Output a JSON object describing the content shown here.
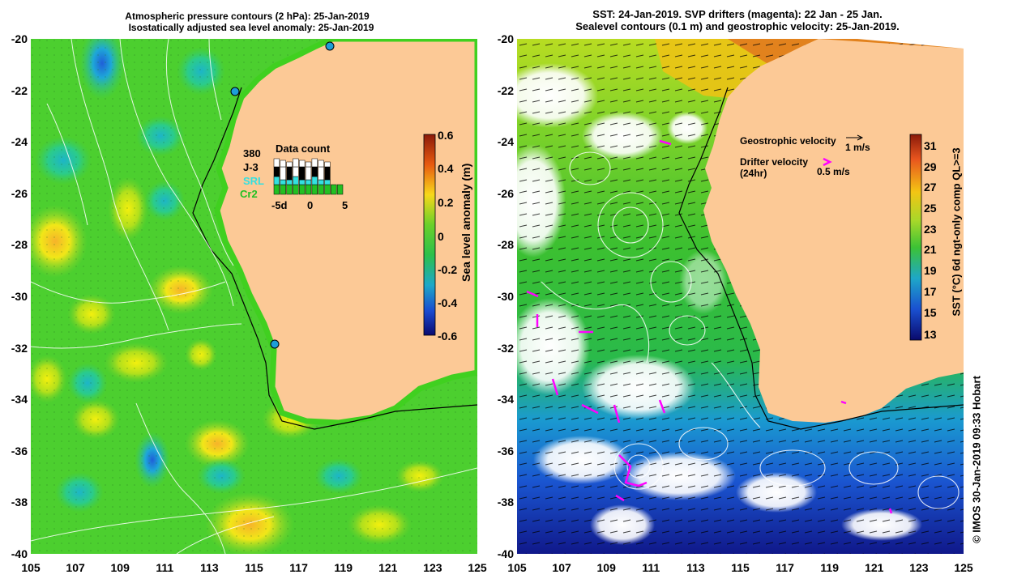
{
  "left_panel": {
    "title_line1": "Atmospheric pressure contours (2 hPa): 25-Jan-2019",
    "title_line2": "Isostatically adjusted sea level anomaly: 25-Jan-2019",
    "y_ticks": [
      "-20",
      "-22",
      "-24",
      "-26",
      "-28",
      "-30",
      "-32",
      "-34",
      "-36",
      "-38",
      "-40"
    ],
    "x_ticks": [
      "105",
      "107",
      "109",
      "111",
      "113",
      "115",
      "117",
      "119",
      "121",
      "123",
      "125"
    ],
    "colorbar_label": "Sea level anomaly (m)",
    "colorbar_ticks": [
      "0.6",
      "0.4",
      "0.2",
      "0",
      "-0.2",
      "-0.4",
      "-0.6"
    ],
    "legend": {
      "title": "Data count",
      "labels": [
        "380",
        "J-3",
        "SRL",
        "Cr2"
      ],
      "label_colors": [
        "#000000",
        "#000000",
        "#33e0e0",
        "#22c022"
      ],
      "x_ticks": [
        "-5d",
        "0",
        "5"
      ]
    }
  },
  "right_panel": {
    "title_line1": "SST: 24-Jan-2019. SVP drifters (magenta): 22 Jan - 25 Jan.",
    "title_line2": "Sealevel contours (0.1 m) and geostrophic velocity: 25-Jan-2019.",
    "y_ticks": [
      "-20",
      "-22",
      "-24",
      "-26",
      "-28",
      "-30",
      "-32",
      "-34",
      "-36",
      "-38",
      "-40"
    ],
    "x_ticks": [
      "105",
      "107",
      "109",
      "111",
      "113",
      "115",
      "117",
      "119",
      "121",
      "123",
      "125"
    ],
    "colorbar_label": "SST (°C) 6d ngt-only comp QL>=3",
    "colorbar_ticks": [
      "31",
      "29",
      "27",
      "25",
      "23",
      "21",
      "19",
      "17",
      "15",
      "13"
    ],
    "geostrophic_label": "Geostrophic velocity",
    "geostrophic_scale": "1 m/s",
    "drifter_label": "Drifter velocity",
    "drifter_sub": "(24hr)",
    "drifter_scale": "0.5 m/s"
  },
  "credit": "© IMOS 30-Jan-2019 09:33 Hobart",
  "colors": {
    "land": "#fcc996",
    "drifter": "#ff00ff",
    "coast": "#000000"
  }
}
